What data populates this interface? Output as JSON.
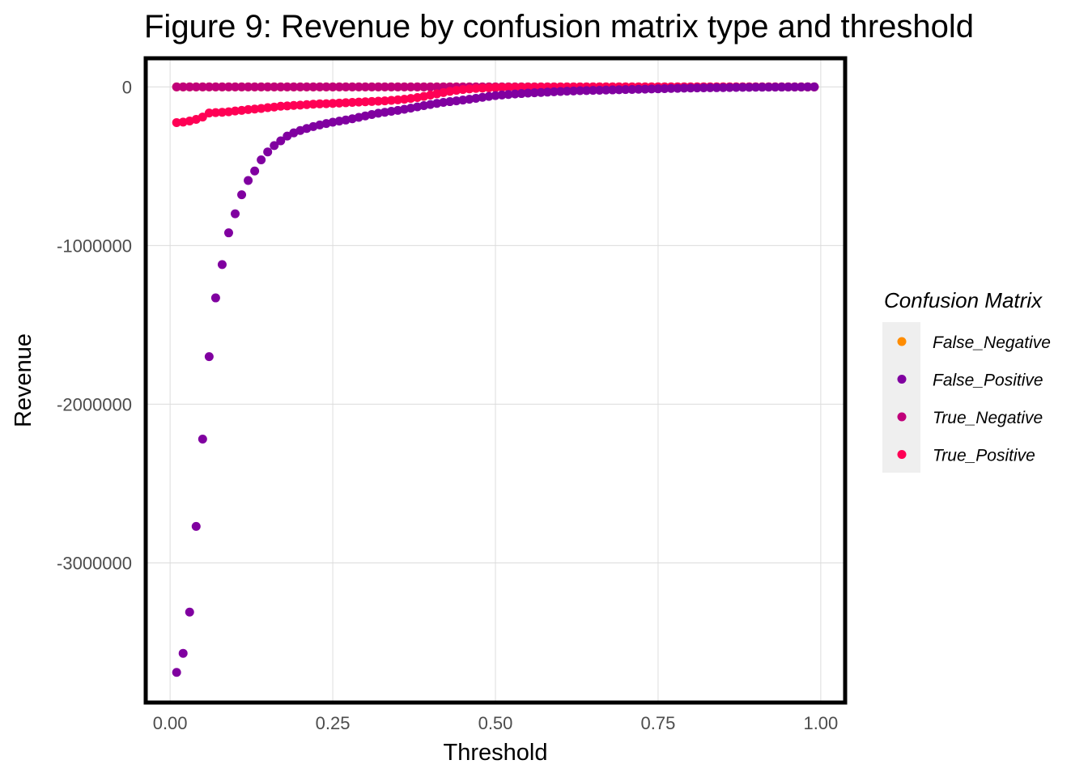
{
  "chart_data": {
    "type": "scatter",
    "title": "Figure 9: Revenue by confusion matrix type and threshold",
    "xlabel": "Threshold",
    "ylabel": "Revenue",
    "xlim": [
      -0.035,
      1.035
    ],
    "ylim": [
      -3870000,
      170000
    ],
    "x_ticks": [
      0.0,
      0.25,
      0.5,
      0.75,
      1.0
    ],
    "x_tick_labels": [
      "0.00",
      "0.25",
      "0.50",
      "0.75",
      "1.00"
    ],
    "y_ticks": [
      0,
      -1000000,
      -2000000,
      -3000000
    ],
    "y_tick_labels": [
      "0",
      "-1000000",
      "-2000000",
      "-3000000"
    ],
    "grid": true,
    "legend": {
      "title": "Confusion Matrix",
      "position": "right",
      "entries": [
        {
          "name": "False_Negative",
          "color": "#ff8c00"
        },
        {
          "name": "False_Positive",
          "color": "#8000a0"
        },
        {
          "name": "True_Negative",
          "color": "#c0007a"
        },
        {
          "name": "True_Positive",
          "color": "#ff0055"
        }
      ]
    },
    "x": [
      0.01,
      0.02,
      0.03,
      0.04,
      0.05,
      0.06,
      0.07,
      0.08,
      0.09,
      0.1,
      0.11,
      0.12,
      0.13,
      0.14,
      0.15,
      0.16,
      0.17,
      0.18,
      0.19,
      0.2,
      0.21,
      0.22,
      0.23,
      0.24,
      0.25,
      0.26,
      0.27,
      0.28,
      0.29,
      0.3,
      0.31,
      0.32,
      0.33,
      0.34,
      0.35,
      0.36,
      0.37,
      0.38,
      0.39,
      0.4,
      0.41,
      0.42,
      0.43,
      0.44,
      0.45,
      0.46,
      0.47,
      0.48,
      0.49,
      0.5,
      0.51,
      0.52,
      0.53,
      0.54,
      0.55,
      0.56,
      0.57,
      0.58,
      0.59,
      0.6,
      0.61,
      0.62,
      0.63,
      0.64,
      0.65,
      0.66,
      0.67,
      0.68,
      0.69,
      0.7,
      0.71,
      0.72,
      0.73,
      0.74,
      0.75,
      0.76,
      0.77,
      0.78,
      0.79,
      0.8,
      0.81,
      0.82,
      0.83,
      0.84,
      0.85,
      0.86,
      0.87,
      0.88,
      0.89,
      0.9,
      0.91,
      0.92,
      0.93,
      0.94,
      0.95,
      0.96,
      0.97,
      0.98,
      0.99
    ],
    "series": [
      {
        "name": "False_Negative",
        "color": "#ff8c00",
        "values": [
          0,
          0,
          0,
          0,
          0,
          0,
          0,
          0,
          0,
          0,
          0,
          0,
          0,
          0,
          0,
          0,
          0,
          0,
          0,
          0,
          0,
          0,
          0,
          0,
          0,
          0,
          0,
          0,
          0,
          0,
          0,
          0,
          0,
          0,
          0,
          0,
          0,
          0,
          0,
          0,
          0,
          0,
          0,
          0,
          0,
          0,
          0,
          0,
          0,
          0,
          0,
          0,
          0,
          0,
          0,
          0,
          0,
          0,
          0,
          0,
          0,
          0,
          0,
          0,
          0,
          0,
          0,
          0,
          0,
          0,
          0,
          0,
          0,
          0,
          0,
          0,
          0,
          0,
          0,
          0,
          0,
          0,
          0,
          0,
          0,
          0,
          0,
          0,
          0,
          0,
          0,
          0,
          0,
          0,
          0,
          0,
          0,
          0,
          0
        ]
      },
      {
        "name": "True_Negative",
        "color": "#c0007a",
        "values": [
          0,
          0,
          0,
          0,
          0,
          0,
          0,
          0,
          0,
          0,
          0,
          0,
          0,
          0,
          0,
          0,
          0,
          0,
          0,
          0,
          0,
          0,
          0,
          0,
          0,
          0,
          0,
          0,
          0,
          0,
          0,
          0,
          0,
          0,
          0,
          0,
          0,
          0,
          0,
          0,
          0,
          0,
          0,
          0,
          0,
          0,
          0,
          0,
          0,
          0,
          0,
          0,
          0,
          0,
          0,
          0,
          0,
          0,
          0,
          0,
          0,
          0,
          0,
          0,
          0,
          0,
          0,
          0,
          0,
          0,
          0,
          0,
          0,
          0,
          0,
          0,
          0,
          0,
          0,
          0,
          0,
          0,
          0,
          0,
          0,
          0,
          0,
          0,
          0,
          0,
          0,
          0,
          0,
          0,
          0,
          0,
          0,
          0,
          0
        ]
      },
      {
        "name": "True_Positive",
        "color": "#ff0055",
        "values": [
          -225000,
          -222000,
          -215000,
          -205000,
          -190000,
          -165000,
          -162000,
          -160000,
          -157000,
          -152000,
          -148000,
          -143000,
          -140000,
          -136000,
          -131000,
          -127000,
          -122000,
          -120000,
          -117000,
          -115000,
          -112000,
          -109000,
          -107000,
          -106000,
          -104000,
          -102000,
          -100000,
          -98000,
          -96000,
          -94000,
          -92000,
          -90000,
          -88000,
          -85000,
          -82000,
          -78000,
          -73000,
          -67000,
          -60000,
          -52000,
          -44000,
          -36000,
          -28000,
          -22000,
          -17000,
          -13000,
          -10000,
          -8000,
          -6000,
          -5000,
          -4000,
          -3500,
          -3000,
          -2500,
          -2000,
          -1800,
          -1500,
          -1300,
          -1100,
          -1000,
          -900,
          -800,
          -700,
          -600,
          -500,
          -450,
          -400,
          -350,
          -300,
          -250,
          -200,
          -180,
          -160,
          -140,
          -120,
          -100,
          -90,
          -80,
          -70,
          -60,
          -50,
          -45,
          -40,
          -35,
          -30,
          -25,
          -20,
          -18,
          -16,
          -14,
          -12,
          -10,
          -8,
          -6,
          -5,
          -4,
          -3,
          -2,
          -1
        ]
      },
      {
        "name": "False_Positive",
        "color": "#8000a0",
        "values": [
          -3690000,
          -3570000,
          -3310000,
          -2770000,
          -2220000,
          -1700000,
          -1330000,
          -1120000,
          -920000,
          -800000,
          -680000,
          -590000,
          -530000,
          -460000,
          -410000,
          -370000,
          -340000,
          -310000,
          -290000,
          -275000,
          -262000,
          -250000,
          -240000,
          -231000,
          -223000,
          -216000,
          -209000,
          -201000,
          -192000,
          -183000,
          -174000,
          -166000,
          -160000,
          -154000,
          -148000,
          -141000,
          -134000,
          -126000,
          -118000,
          -111000,
          -104000,
          -98000,
          -93000,
          -88000,
          -83000,
          -78000,
          -72000,
          -66000,
          -60000,
          -55000,
          -51000,
          -48000,
          -45000,
          -42000,
          -39000,
          -37000,
          -35000,
          -33000,
          -31000,
          -29000,
          -27000,
          -26000,
          -24000,
          -23000,
          -22000,
          -21000,
          -20000,
          -19000,
          -18000,
          -17000,
          -16000,
          -15000,
          -14000,
          -13000,
          -12000,
          -11000,
          -10000,
          -9000,
          -8000,
          -7000,
          -6500,
          -6000,
          -5500,
          -5000,
          -4500,
          -4000,
          -3500,
          -3000,
          -2500,
          -2000,
          -1800,
          -1600,
          -1400,
          -1200,
          -1000,
          -800,
          -600,
          -400,
          -200
        ]
      }
    ]
  }
}
